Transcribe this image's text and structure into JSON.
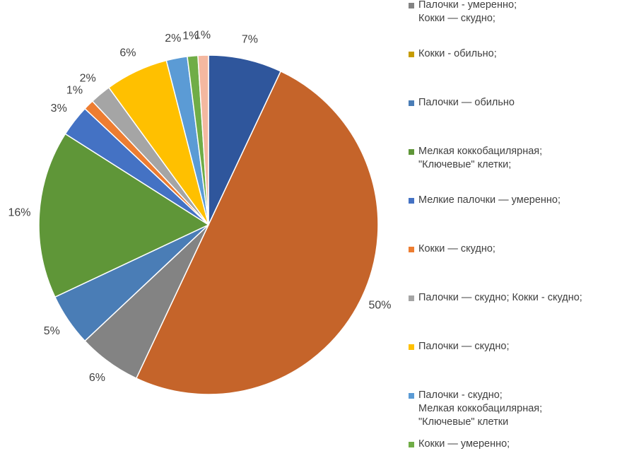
{
  "chart_data": {
    "type": "pie",
    "categories": [
      null,
      null,
      "Палочки - умеренно;\nКокки — скудно;",
      "Кокки - обильно;",
      "Палочки — обильно",
      "Мелкая коккобацилярная;\n\"Ключевые\" клетки;",
      "Мелкие палочки — умеренно;",
      "Кокки — скудно;",
      "Палочки — скудно; Кокки - скудно;",
      "Палочки — скудно;",
      "Палочки - скудно;\nМелкая коккобацилярная;\n\"Ключевые\" клетки",
      "Кокки — умеренно;",
      null
    ],
    "values": [
      7,
      50,
      6,
      0,
      5,
      16,
      3,
      1,
      2,
      6,
      2,
      1,
      1
    ],
    "value_labels": [
      "7%",
      "50%",
      "6%",
      null,
      "5%",
      "16%",
      "3%",
      "1%",
      "2%",
      "6%",
      "2%",
      "1%",
      "1%"
    ],
    "colors": [
      "#2f569c",
      "#c5642a",
      "#838383",
      "#c69c00",
      "#4a7db6",
      "#5f9638",
      "#4472c4",
      "#ed7d31",
      "#a5a5a5",
      "#ffc000",
      "#5b9bd5",
      "#70ad47",
      "#f4b8a0"
    ]
  }
}
